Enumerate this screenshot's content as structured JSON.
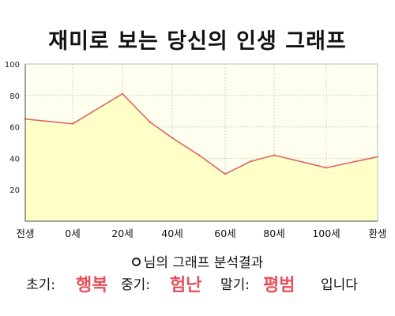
{
  "title": "재미로 보는 당신의 인생 그래프",
  "colors": {
    "fill": "#ffffc8",
    "plot_bg": "#fffff0",
    "line": "#e06666",
    "grid": "#d4d4b0",
    "axis": "#444444",
    "emphasis": "#e8505b"
  },
  "chart_data": {
    "type": "area",
    "title": "재미로 보는 당신의 인생 그래프",
    "xlabel": "",
    "ylabel": "",
    "ylim": [
      0,
      100
    ],
    "y_ticks": [
      20,
      40,
      60,
      80,
      100
    ],
    "grid": true,
    "legend": "none",
    "x_tick_labels": [
      "전생",
      "0세",
      "20세",
      "40세",
      "60세",
      "80세",
      "100세",
      "환생"
    ],
    "points": [
      {
        "x": "전생",
        "y": 65
      },
      {
        "x": "0세",
        "y": 62
      },
      {
        "x": "20세",
        "y": 81
      },
      {
        "x": "30세",
        "y": 63
      },
      {
        "x": "40세",
        "y": 53
      },
      {
        "x": "50세",
        "y": 42
      },
      {
        "x": "60세",
        "y": 30
      },
      {
        "x": "70세",
        "y": 38
      },
      {
        "x": "80세",
        "y": 42
      },
      {
        "x": "100세",
        "y": 34
      },
      {
        "x": "환생",
        "y": 41
      }
    ]
  },
  "summary": {
    "text": "님의 그래프 분석결과"
  },
  "result": {
    "early_label": "초기:",
    "early_value": "행복",
    "mid_label": "중기:",
    "mid_value": "험난",
    "late_label": "말기:",
    "late_value": "평범",
    "suffix": "입니다"
  }
}
